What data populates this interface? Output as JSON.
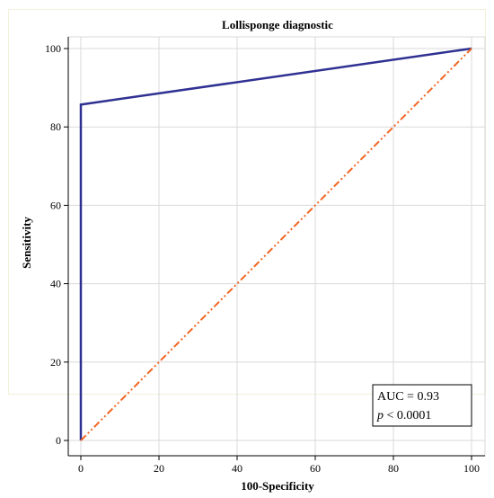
{
  "chart_data": {
    "type": "line",
    "title": "Lollisponge diagnostic",
    "xlabel": "100-Specificity",
    "ylabel": "Sensitivity",
    "xlim": [
      0,
      100
    ],
    "ylim": [
      0,
      100
    ],
    "xticks": [
      0,
      20,
      40,
      60,
      80,
      100
    ],
    "yticks": [
      0,
      20,
      40,
      60,
      80,
      100
    ],
    "grid": true,
    "series": [
      {
        "color": "#2e3192",
        "style": "solid",
        "x": [
          0,
          0,
          100
        ],
        "y": [
          0,
          85.7,
          100
        ]
      },
      {
        "color": "#f26522",
        "style": "dash-dot-dot",
        "x": [
          0,
          100
        ],
        "y": [
          0,
          100
        ]
      }
    ],
    "annotation": {
      "line1": "AUC = 0.93",
      "line2_italic": "p",
      "line2_rest": " < 0.0001"
    }
  }
}
